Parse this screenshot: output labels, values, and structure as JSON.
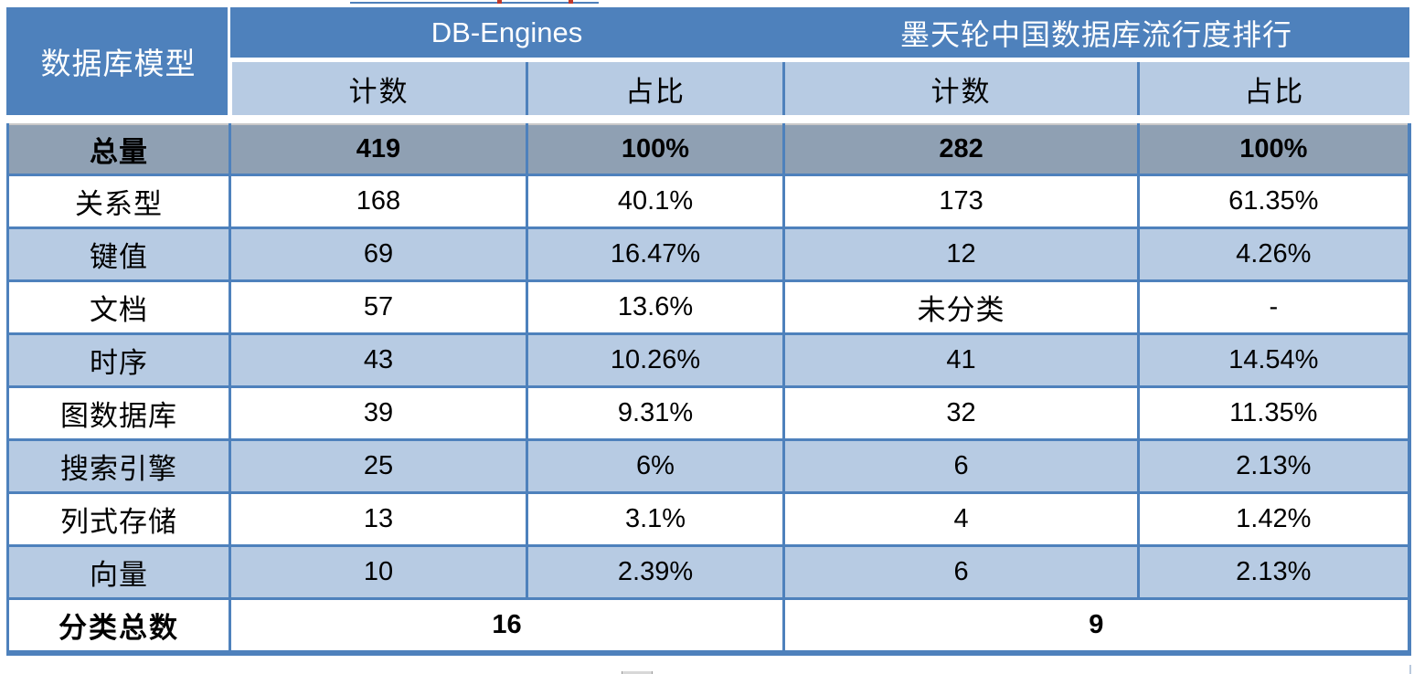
{
  "table": {
    "corner_header": "数据库模型",
    "groups": [
      {
        "label": "DB-Engines",
        "sub_columns": [
          "计数",
          "占比"
        ]
      },
      {
        "label": "墨天轮中国数据库流行度排行",
        "sub_columns": [
          "计数",
          "占比"
        ]
      }
    ],
    "sub_headers": [
      "计数",
      "占比",
      "计数",
      "占比"
    ],
    "total_row": {
      "label": "总量",
      "values": [
        "419",
        "100%",
        "282",
        "100%"
      ]
    },
    "rows": [
      {
        "label": "关系型",
        "values": [
          "168",
          "40.1%",
          "173",
          "61.35%"
        ]
      },
      {
        "label": "键值",
        "values": [
          "69",
          "16.47%",
          "12",
          "4.26%"
        ]
      },
      {
        "label": "文档",
        "values": [
          "57",
          "13.6%",
          "未分类",
          "-"
        ]
      },
      {
        "label": "时序",
        "values": [
          "43",
          "10.26%",
          "41",
          "14.54%"
        ]
      },
      {
        "label": "图数据库",
        "values": [
          "39",
          "9.31%",
          "32",
          "11.35%"
        ]
      },
      {
        "label": "搜索引擎",
        "values": [
          "25",
          "6%",
          "6",
          "2.13%"
        ]
      },
      {
        "label": "列式存储",
        "values": [
          "13",
          "3.1%",
          "4",
          "1.42%"
        ]
      },
      {
        "label": "向量",
        "values": [
          "10",
          "2.39%",
          "6",
          "2.13%"
        ]
      }
    ],
    "summary_row": {
      "label": "分类总数",
      "db_engines_total": "16",
      "motianlun_total": "9"
    }
  },
  "colors": {
    "header_blue": "#4e81bc",
    "sub_header_light_blue": "#b7cbe3",
    "total_row_gray": "#8fa0b3",
    "border_blue": "#4e81bc",
    "header_text": "#ffffff",
    "body_text": "#000000"
  }
}
